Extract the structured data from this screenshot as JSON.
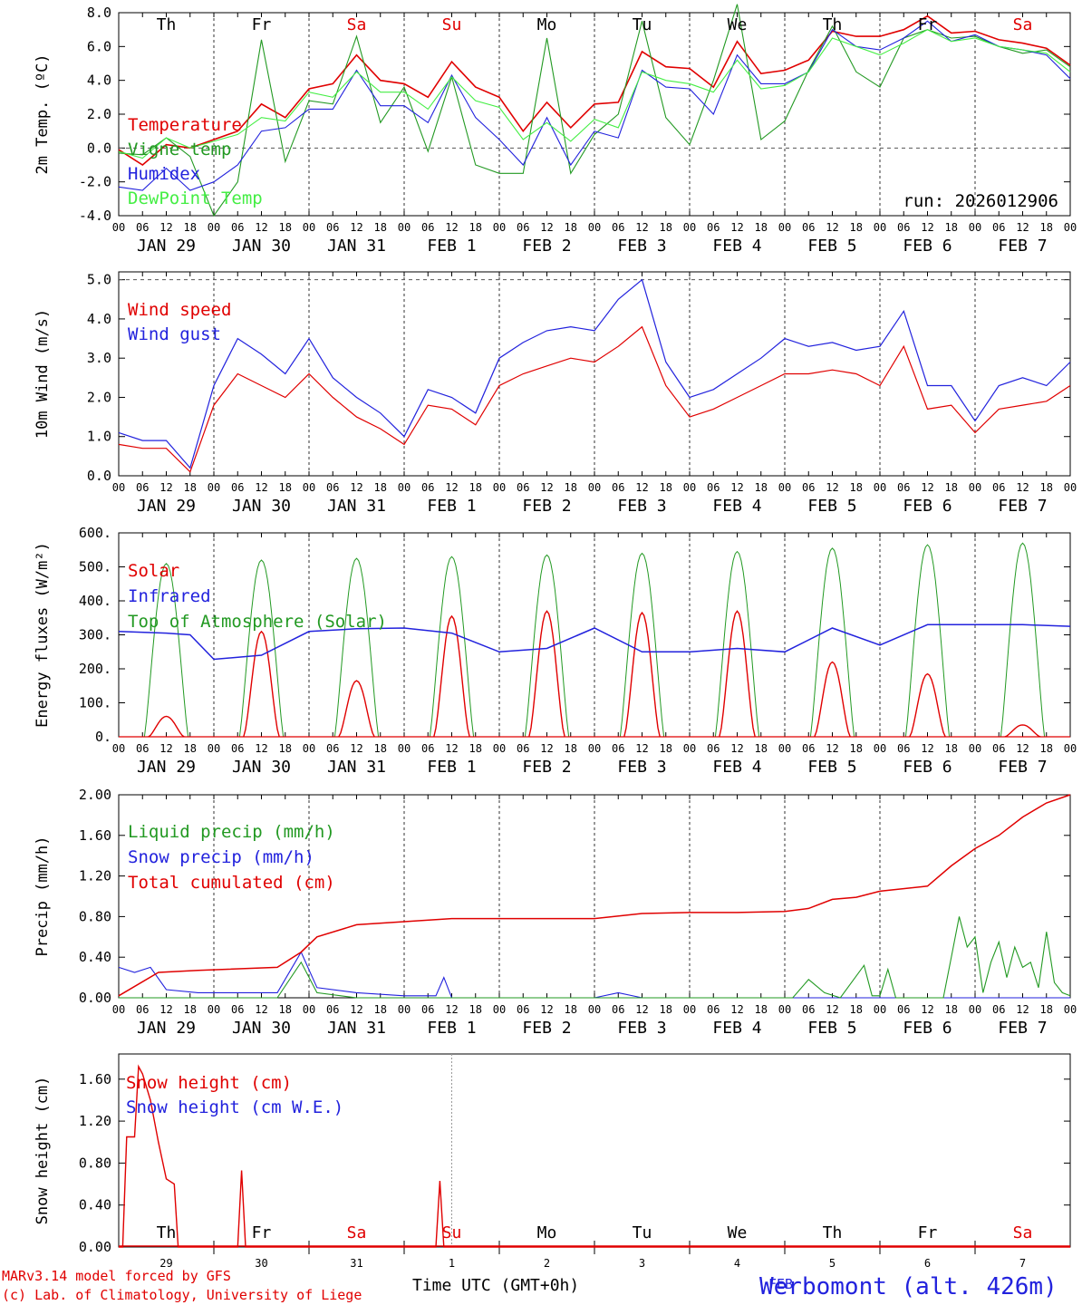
{
  "colors": {
    "temperature": "#e00000",
    "vigne": "#229922",
    "humidex": "#2222dd",
    "dewpoint": "#44ee44",
    "solar": "#e00000",
    "infrared": "#2222dd",
    "toa": "#229922",
    "liquid": "#229922",
    "snow": "#2222dd",
    "cumul": "#e00000",
    "weekend": "#e00000"
  },
  "days": {
    "dow": [
      "Th",
      "Fr",
      "Sa",
      "Su",
      "Mo",
      "Tu",
      "We",
      "Th",
      "Fr",
      "Sa"
    ],
    "dates": [
      "JAN 29",
      "JAN 30",
      "JAN 31",
      "FEB  1",
      "FEB  2",
      "FEB  3",
      "FEB  4",
      "FEB  5",
      "FEB  6",
      "FEB  7"
    ],
    "hours": [
      "00",
      "06",
      "12",
      "18"
    ],
    "end_hour": "00",
    "weekend_index": [
      2,
      3,
      9
    ]
  },
  "footer": {
    "line1": "MARv3.14 model forced by GFS",
    "line2": "(c) Lab. of Climatology, University of Liege",
    "xlabel": "Time UTC (GMT+0h)",
    "station": "Werbomont (alt. 426m)",
    "month": "FEB",
    "day_numbers": [
      "29",
      "30",
      "31",
      "1",
      "2",
      "3",
      "4",
      "5",
      "6",
      "7"
    ]
  },
  "chart_data": [
    {
      "type": "line",
      "ylabel": "2m Temp. (ºC)",
      "ylim": [
        -4,
        8
      ],
      "yticks": [
        "-4.0",
        "-2.0",
        "0.0",
        "2.0",
        "4.0",
        "6.0",
        "8.0"
      ],
      "annotation": "run: 2026012906",
      "x_hours": [
        0,
        6,
        12,
        18,
        24,
        30,
        36,
        42,
        48,
        54,
        60,
        66,
        72,
        78,
        84,
        90,
        96,
        102,
        108,
        114,
        120,
        126,
        132,
        138,
        144,
        150,
        156,
        162,
        168,
        174,
        180,
        186,
        192,
        198,
        204,
        210,
        216,
        222,
        228,
        234,
        240
      ],
      "series": [
        {
          "name": "Temperature",
          "color": "temperature",
          "values": [
            -0.1,
            -1.0,
            0.2,
            0.0,
            0.5,
            1.0,
            2.6,
            1.8,
            3.5,
            3.8,
            5.5,
            4.0,
            3.8,
            3.0,
            5.1,
            3.6,
            3.0,
            1.0,
            2.7,
            1.2,
            2.6,
            2.7,
            5.7,
            4.8,
            4.7,
            3.6,
            6.3,
            4.4,
            4.6,
            5.2,
            6.9,
            6.6,
            6.6,
            7.0,
            7.8,
            6.8,
            6.9,
            6.4,
            6.2,
            5.9,
            4.9
          ]
        },
        {
          "name": "Vigne temp",
          "color": "vigne",
          "values": [
            -0.3,
            -0.4,
            0.6,
            -0.5,
            -4.0,
            -2.0,
            6.4,
            -0.8,
            2.8,
            2.6,
            6.6,
            1.5,
            3.6,
            -0.2,
            4.2,
            -1.0,
            -1.5,
            -1.5,
            6.5,
            -1.5,
            0.8,
            2.0,
            7.5,
            1.8,
            0.2,
            4.0,
            8.5,
            0.5,
            1.6,
            4.6,
            7.2,
            4.5,
            3.6,
            6.5,
            7.0,
            6.5,
            6.6,
            6.0,
            5.6,
            5.8,
            4.8
          ]
        },
        {
          "name": "Humidex",
          "color": "humidex",
          "values": [
            -2.3,
            -2.5,
            -1.2,
            -2.5,
            -2.0,
            -1.0,
            1.0,
            1.2,
            2.3,
            2.3,
            4.6,
            2.5,
            2.5,
            1.5,
            4.3,
            1.8,
            0.5,
            -1.0,
            1.8,
            -1.0,
            1.0,
            0.6,
            4.6,
            3.6,
            3.5,
            2.0,
            5.5,
            3.8,
            3.8,
            4.5,
            7.0,
            6.0,
            5.8,
            6.5,
            7.5,
            6.3,
            6.7,
            6.0,
            5.8,
            5.5,
            4.1
          ]
        },
        {
          "name": "DewPoint Temp",
          "color": "dewpoint",
          "values": [
            -0.2,
            -0.6,
            0.6,
            0.0,
            0.4,
            0.8,
            1.8,
            1.6,
            3.3,
            3.0,
            4.5,
            3.3,
            3.3,
            2.3,
            4.2,
            2.8,
            2.4,
            0.5,
            1.5,
            0.4,
            1.7,
            1.2,
            4.5,
            4.0,
            3.8,
            3.3,
            5.2,
            3.5,
            3.7,
            4.5,
            6.5,
            6.0,
            5.5,
            6.2,
            7.0,
            6.3,
            6.5,
            6.0,
            5.8,
            5.6,
            4.5
          ]
        }
      ]
    },
    {
      "type": "line",
      "ylabel": "10m Wind (m/s)",
      "ylim": [
        0,
        5.2
      ],
      "yticks": [
        "0.0",
        "1.0",
        "2.0",
        "3.0",
        "4.0",
        "5.0"
      ],
      "x_hours": [
        0,
        6,
        12,
        18,
        24,
        30,
        36,
        42,
        48,
        54,
        60,
        66,
        72,
        78,
        84,
        90,
        96,
        102,
        108,
        114,
        120,
        126,
        132,
        138,
        144,
        150,
        156,
        162,
        168,
        174,
        180,
        186,
        192,
        198,
        204,
        210,
        216,
        222,
        228,
        234,
        240
      ],
      "series": [
        {
          "name": "Wind speed",
          "color": "temperature",
          "values": [
            0.8,
            0.7,
            0.7,
            0.1,
            1.8,
            2.6,
            2.3,
            2.0,
            2.6,
            2.0,
            1.5,
            1.2,
            0.8,
            1.8,
            1.7,
            1.3,
            2.3,
            2.6,
            2.8,
            3.0,
            2.9,
            3.3,
            3.8,
            2.3,
            1.5,
            1.7,
            2.0,
            2.3,
            2.6,
            2.6,
            2.7,
            2.6,
            2.3,
            3.3,
            1.7,
            1.8,
            1.1,
            1.7,
            1.8,
            1.9,
            2.3
          ]
        },
        {
          "name": "Wind gust",
          "color": "humidex",
          "values": [
            1.1,
            0.9,
            0.9,
            0.2,
            2.3,
            3.5,
            3.1,
            2.6,
            3.5,
            2.5,
            2.0,
            1.6,
            1.0,
            2.2,
            2.0,
            1.6,
            3.0,
            3.4,
            3.7,
            3.8,
            3.7,
            4.5,
            5.0,
            2.9,
            2.0,
            2.2,
            2.6,
            3.0,
            3.5,
            3.3,
            3.4,
            3.2,
            3.3,
            4.2,
            2.3,
            2.3,
            1.4,
            2.3,
            2.5,
            2.3,
            2.9
          ]
        }
      ]
    },
    {
      "type": "line",
      "ylabel": "Energy fluxes (W/m²)",
      "ylim": [
        0,
        600
      ],
      "yticks": [
        "0.",
        "100.",
        "200.",
        "300.",
        "400.",
        "500.",
        "600."
      ],
      "peaks": {
        "toa": [
          510,
          520,
          525,
          530,
          535,
          540,
          545,
          555,
          565,
          570
        ],
        "solar": [
          60,
          310,
          165,
          355,
          370,
          365,
          370,
          220,
          185,
          35
        ]
      },
      "infrared": {
        "x_hours": [
          0,
          12,
          18,
          24,
          36,
          48,
          60,
          72,
          84,
          96,
          108,
          120,
          132,
          144,
          156,
          168,
          180,
          192,
          204,
          216,
          228,
          240
        ],
        "values": [
          310,
          305,
          300,
          228,
          240,
          310,
          318,
          320,
          305,
          250,
          260,
          320,
          250,
          250,
          260,
          250,
          320,
          270,
          330,
          330,
          330,
          325
        ]
      },
      "series": [
        {
          "name": "Solar",
          "color": "solar"
        },
        {
          "name": "Infrared",
          "color": "infrared"
        },
        {
          "name": "Top of Atmosphere (Solar)",
          "color": "toa"
        }
      ]
    },
    {
      "type": "line",
      "ylabel": "Precip (mm/h)",
      "ylim": [
        0,
        2.0
      ],
      "yticks": [
        "0.00",
        "0.40",
        "0.80",
        "1.20",
        "1.60",
        "2.00"
      ],
      "cumul": {
        "x_hours": [
          0,
          10,
          20,
          40,
          46,
          50,
          60,
          72,
          84,
          96,
          108,
          120,
          132,
          144,
          156,
          168,
          174,
          180,
          186,
          192,
          204,
          210,
          216,
          222,
          228,
          234,
          240
        ],
        "values": [
          0.02,
          0.25,
          0.27,
          0.3,
          0.45,
          0.6,
          0.72,
          0.75,
          0.78,
          0.78,
          0.78,
          0.78,
          0.83,
          0.84,
          0.84,
          0.85,
          0.88,
          0.97,
          0.99,
          1.05,
          1.1,
          1.3,
          1.47,
          1.6,
          1.78,
          1.92,
          2.0
        ]
      },
      "liquid": {
        "x_hours": [
          0,
          40,
          46,
          50,
          60,
          170,
          174,
          178,
          182,
          188,
          190,
          192,
          194,
          196,
          200,
          208,
          210,
          212,
          214,
          216,
          218,
          220,
          222,
          224,
          226,
          228,
          230,
          232,
          234,
          236,
          238,
          240
        ],
        "values": [
          0,
          0,
          0.35,
          0.05,
          0,
          0,
          0.18,
          0.05,
          0,
          0.32,
          0.02,
          0.02,
          0.28,
          0,
          0,
          0,
          0.4,
          0.8,
          0.5,
          0.6,
          0.05,
          0.35,
          0.55,
          0.2,
          0.5,
          0.3,
          0.35,
          0.1,
          0.65,
          0.15,
          0.05,
          0.02
        ]
      },
      "snowp": {
        "x_hours": [
          0,
          4,
          8,
          12,
          20,
          40,
          46,
          50,
          60,
          72,
          80,
          82,
          84,
          96,
          120,
          126,
          132,
          150,
          240
        ],
        "values": [
          0.3,
          0.25,
          0.3,
          0.08,
          0.05,
          0.05,
          0.45,
          0.1,
          0.05,
          0.02,
          0.02,
          0.2,
          0.0,
          0.0,
          0.0,
          0.05,
          0.0,
          0.0,
          0.0
        ]
      },
      "series": [
        {
          "name": "Liquid precip (mm/h)",
          "color": "liquid"
        },
        {
          "name": "Snow precip (mm/h)",
          "color": "snow"
        },
        {
          "name": "Total cumulated (cm)",
          "color": "cumul"
        }
      ]
    },
    {
      "type": "line",
      "ylabel": "Snow height (cm)",
      "ylim": [
        0,
        1.84
      ],
      "yticks": [
        "0.00",
        "0.40",
        "0.80",
        "1.20",
        "1.60"
      ],
      "snow": {
        "x_hours": [
          0,
          1,
          2,
          4,
          5,
          6,
          8,
          10,
          12,
          14,
          15,
          16,
          17,
          30,
          31,
          32,
          33,
          80,
          81,
          82,
          83,
          240
        ],
        "values": [
          0,
          0,
          1.05,
          1.05,
          1.72,
          1.65,
          1.4,
          1.0,
          0.65,
          0.6,
          0,
          0,
          0,
          0,
          0.73,
          0,
          0,
          0,
          0.63,
          0,
          0,
          0
        ]
      },
      "series": [
        {
          "name": "Snow height (cm)",
          "color": "cumul"
        },
        {
          "name": "Snow height (cm W.E.)",
          "color": "snow"
        }
      ]
    }
  ]
}
